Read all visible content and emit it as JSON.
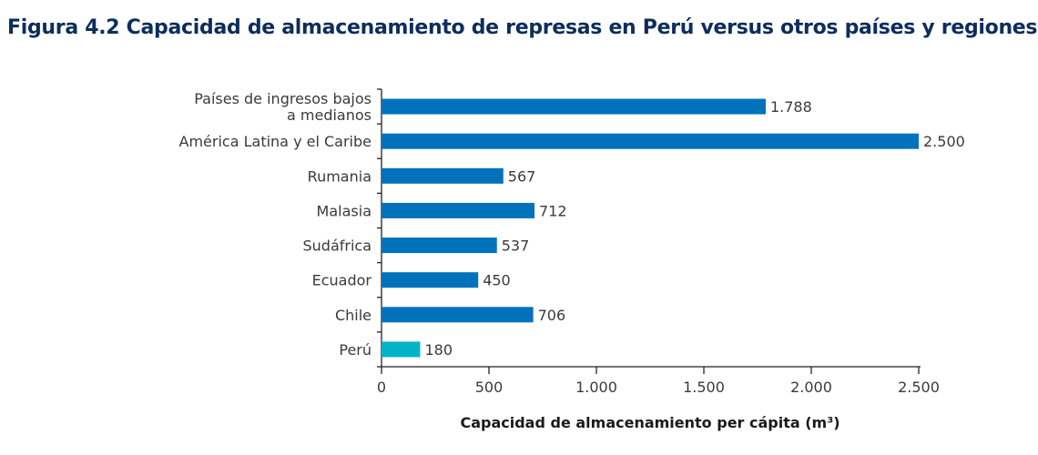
{
  "chart_data": {
    "type": "bar",
    "orientation": "horizontal",
    "title": "Figura 4.2  Capacidad de almacenamiento de represas en Perú versus otros países y regiones",
    "xlabel": "Capacidad de almacenamiento per cápita (m³)",
    "ylabel": "",
    "categories": [
      [
        "Países de ingresos bajos",
        "a medianos"
      ],
      [
        "América Latina y el Caribe"
      ],
      [
        "Rumania"
      ],
      [
        "Malasia"
      ],
      [
        "Sudáfrica"
      ],
      [
        "Ecuador"
      ],
      [
        "Chile"
      ],
      [
        "Perú"
      ]
    ],
    "values": [
      1788,
      2500,
      567,
      712,
      537,
      450,
      706,
      180
    ],
    "value_labels": [
      "1.788",
      "2.500",
      "567",
      "712",
      "537",
      "450",
      "706",
      "180"
    ],
    "xlim": [
      0,
      2500
    ],
    "xticks": [
      0,
      500,
      1000,
      1500,
      2000,
      2500
    ],
    "xtick_labels": [
      "0",
      "500",
      "1.000",
      "1.500",
      "2.000",
      "2.500"
    ],
    "grid": false,
    "colors": [
      "#0072bc",
      "#0072bc",
      "#0072bc",
      "#0072bc",
      "#0072bc",
      "#0072bc",
      "#0072bc",
      "#00b3c9"
    ]
  }
}
